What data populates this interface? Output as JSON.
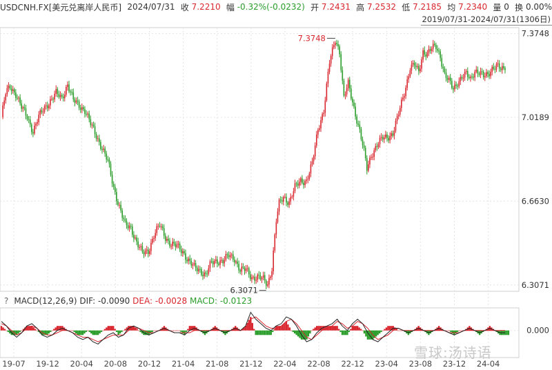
{
  "header": {
    "symbol": "USDCNH.FX[美元兑离岸人民币]",
    "date": "2024/07/31",
    "close_label": "收",
    "close": "7.2210",
    "change_label": "幅",
    "change": "-0.32%(-0.0232)",
    "open_label": "开",
    "open": "7.2431",
    "high_label": "高",
    "high": "7.2532",
    "low_label": "低",
    "low": "7.2185",
    "avg_label": "均",
    "avg": "7.2340",
    "vol_label": "量",
    "vol": "0",
    "turnover_label": "换",
    "turnover": "0.00%"
  },
  "range_label": "2019/07/31-2024/07/31(1306日)",
  "macd_header": {
    "help": "?",
    "name": "MACD(12,26,9)",
    "dif_label": "DIF:",
    "dif": "-0.0090",
    "dea_label": "DEA:",
    "dea": "-0.0028",
    "macd_label": "MACD:",
    "macd": "-0.0123"
  },
  "watermark": "雪球:汤诗语",
  "colors": {
    "up": "#d9262e",
    "down": "#2a9d2a",
    "grid": "#e4e4e4",
    "dif": "#222222",
    "dea": "#d9262e"
  },
  "chart_data": [
    {
      "type": "candlestick",
      "title": "",
      "y_ticks": [
        "7.3748",
        "7.0189",
        "6.6630",
        "6.3071"
      ],
      "ylim": [
        6.28,
        7.4
      ],
      "x_ticks": [
        "19-07",
        "19-12",
        "20-04",
        "20-08",
        "20-12",
        "21-04",
        "21-08",
        "21-12",
        "22-04",
        "22-08",
        "22-12",
        "23-04",
        "23-08",
        "23-12",
        "24-04"
      ],
      "annotations": [
        {
          "text": "7.3748",
          "label": "max"
        },
        {
          "text": "6.3071",
          "label": "min"
        }
      ],
      "series": [
        {
          "values": [
            [
              0,
              7.02
            ],
            [
              3,
              7.12
            ],
            [
              6,
              7.15
            ],
            [
              10,
              7.12
            ],
            [
              14,
              7.06
            ],
            [
              18,
              7.02
            ],
            [
              22,
              6.96
            ],
            [
              26,
              7.02
            ],
            [
              30,
              7.06
            ],
            [
              34,
              7.09
            ],
            [
              38,
              7.12
            ],
            [
              42,
              7.1
            ],
            [
              46,
              7.16
            ],
            [
              50,
              7.09
            ],
            [
              54,
              7.07
            ],
            [
              58,
              7.05
            ],
            [
              62,
              6.99
            ],
            [
              66,
              6.94
            ],
            [
              70,
              6.89
            ],
            [
              74,
              6.83
            ],
            [
              78,
              6.72
            ],
            [
              82,
              6.64
            ],
            [
              86,
              6.56
            ],
            [
              90,
              6.55
            ],
            [
              94,
              6.49
            ],
            [
              98,
              6.44
            ],
            [
              102,
              6.45
            ],
            [
              106,
              6.52
            ],
            [
              110,
              6.56
            ],
            [
              114,
              6.51
            ],
            [
              118,
              6.48
            ],
            [
              122,
              6.47
            ],
            [
              126,
              6.45
            ],
            [
              130,
              6.41
            ],
            [
              134,
              6.38
            ],
            [
              138,
              6.37
            ],
            [
              142,
              6.35
            ],
            [
              146,
              6.4
            ],
            [
              150,
              6.41
            ],
            [
              154,
              6.41
            ],
            [
              158,
              6.43
            ],
            [
              162,
              6.42
            ],
            [
              166,
              6.37
            ],
            [
              170,
              6.37
            ],
            [
              174,
              6.34
            ],
            [
              178,
              6.34
            ],
            [
              182,
              6.33
            ],
            [
              185,
              6.31
            ],
            [
              188,
              6.38
            ],
            [
              191,
              6.58
            ],
            [
              193,
              6.65
            ],
            [
              196,
              6.68
            ],
            [
              200,
              6.66
            ],
            [
              204,
              6.72
            ],
            [
              208,
              6.75
            ],
            [
              212,
              6.75
            ],
            [
              216,
              6.82
            ],
            [
              220,
              6.97
            ],
            [
              224,
              7.05
            ],
            [
              228,
              7.25
            ],
            [
              232,
              7.35
            ],
            [
              235,
              7.3
            ],
            [
              238,
              7.1
            ],
            [
              241,
              7.16
            ],
            [
              245,
              7.06
            ],
            [
              249,
              6.96
            ],
            [
              252,
              6.87
            ],
            [
              254,
              6.8
            ],
            [
              257,
              6.86
            ],
            [
              261,
              6.9
            ],
            [
              265,
              6.93
            ],
            [
              269,
              6.94
            ],
            [
              272,
              6.95
            ],
            [
              275,
              7.01
            ],
            [
              278,
              7.08
            ],
            [
              281,
              7.15
            ],
            [
              284,
              7.23
            ],
            [
              287,
              7.24
            ],
            [
              290,
              7.21
            ],
            [
              293,
              7.3
            ],
            [
              296,
              7.29
            ],
            [
              299,
              7.31
            ],
            [
              302,
              7.32
            ],
            [
              305,
              7.28
            ],
            [
              308,
              7.2
            ],
            [
              311,
              7.17
            ],
            [
              314,
              7.14
            ],
            [
              317,
              7.17
            ],
            [
              320,
              7.19
            ],
            [
              323,
              7.2
            ],
            [
              326,
              7.18
            ],
            [
              329,
              7.22
            ],
            [
              332,
              7.21
            ],
            [
              335,
              7.19
            ],
            [
              338,
              7.2
            ],
            [
              341,
              7.23
            ],
            [
              344,
              7.24
            ],
            [
              347,
              7.22
            ],
            [
              350,
              7.22
            ]
          ]
        }
      ]
    },
    {
      "type": "macd",
      "ylim": [
        -0.12,
        0.1
      ],
      "y_ticks": [
        "0.000"
      ],
      "series": [
        {
          "name": "DIF",
          "values": [
            0.04,
            0.02,
            -0.01,
            -0.03,
            -0.01,
            0.02,
            0.03,
            0.01,
            -0.02,
            -0.03,
            -0.02,
            0.0,
            0.01,
            0.0,
            -0.01,
            -0.03,
            -0.04,
            -0.03,
            -0.05,
            -0.06,
            -0.04,
            -0.02,
            -0.01,
            -0.03,
            -0.02,
            0.01,
            0.02,
            0.01,
            -0.01,
            -0.02,
            -0.01,
            0.0,
            0.01,
            0.0,
            -0.01,
            -0.01,
            -0.02,
            0.0,
            0.01,
            0.0,
            -0.01,
            0.0,
            0.01,
            0.0,
            -0.01,
            0.0,
            0.01,
            0.0,
            0.02,
            0.08,
            0.05,
            0.03,
            0.01,
            0.0,
            0.02,
            0.03,
            0.06,
            0.05,
            0.02,
            -0.02,
            -0.05,
            -0.04,
            -0.01,
            0.01,
            0.02,
            0.03,
            0.05,
            0.02,
            0.0,
            0.03,
            0.05,
            0.03,
            -0.01,
            -0.04,
            -0.05,
            -0.03,
            -0.01,
            0.01,
            0.01,
            0.0,
            -0.01,
            0.0,
            0.01,
            0.0,
            -0.01,
            0.0,
            0.01,
            0.0,
            -0.01,
            -0.02,
            -0.01,
            0.0,
            0.01,
            0.0,
            -0.01,
            0.0,
            0.01,
            0.0,
            -0.01,
            -0.01
          ]
        },
        {
          "name": "DEA",
          "values": [
            0.03,
            0.02,
            0.0,
            -0.02,
            -0.01,
            0.01,
            0.02,
            0.01,
            -0.01,
            -0.02,
            -0.02,
            -0.01,
            0.0,
            0.0,
            -0.01,
            -0.02,
            -0.03,
            -0.03,
            -0.04,
            -0.05,
            -0.04,
            -0.03,
            -0.02,
            -0.02,
            -0.02,
            0.0,
            0.01,
            0.01,
            0.0,
            -0.01,
            -0.01,
            0.0,
            0.0,
            0.0,
            -0.01,
            -0.01,
            -0.01,
            -0.01,
            0.0,
            0.0,
            0.0,
            0.0,
            0.0,
            0.0,
            0.0,
            0.0,
            0.0,
            0.0,
            0.01,
            0.05,
            0.06,
            0.04,
            0.02,
            0.01,
            0.01,
            0.02,
            0.04,
            0.05,
            0.03,
            0.0,
            -0.03,
            -0.04,
            -0.02,
            0.0,
            0.01,
            0.02,
            0.04,
            0.03,
            0.01,
            0.02,
            0.04,
            0.03,
            0.01,
            -0.02,
            -0.04,
            -0.03,
            -0.02,
            0.0,
            0.01,
            0.0,
            0.0,
            0.0,
            0.0,
            0.0,
            0.0,
            0.0,
            0.0,
            0.0,
            -0.01,
            -0.01,
            -0.01,
            0.0,
            0.0,
            0.0,
            0.0,
            0.0,
            0.0,
            0.0,
            0.0,
            0.0
          ]
        }
      ]
    }
  ]
}
